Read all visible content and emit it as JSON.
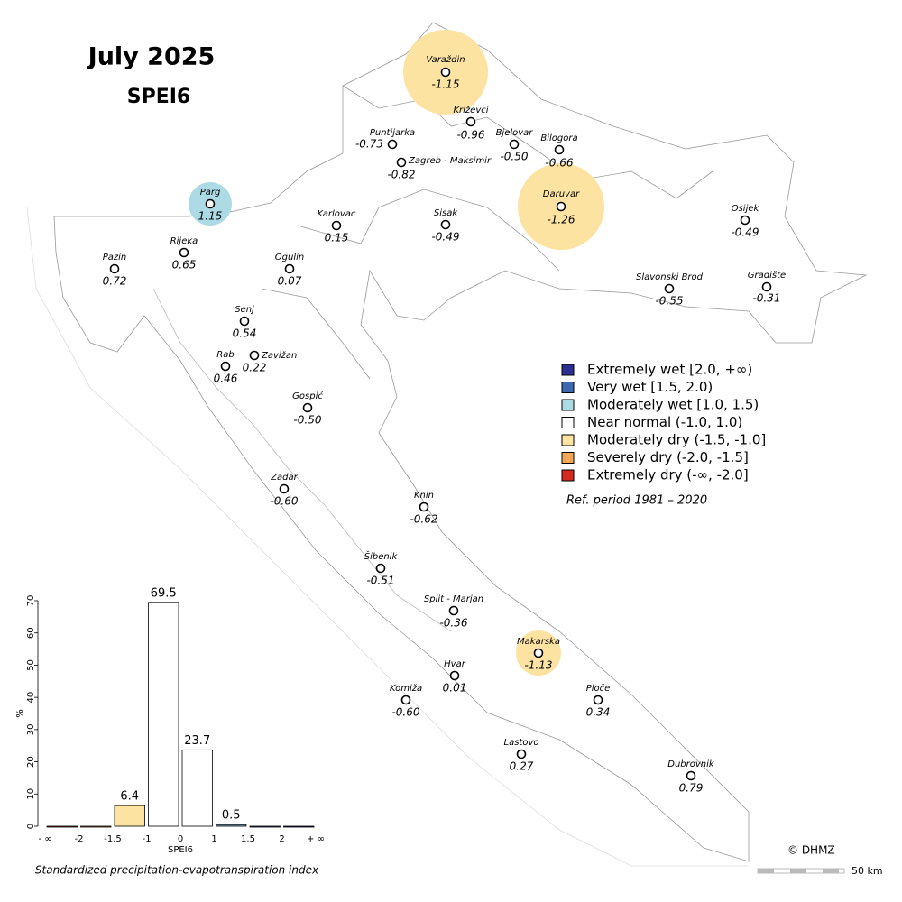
{
  "title": "July 2025",
  "subtitle": "SPEI6",
  "stations": [
    {
      "name": "Varaždin",
      "value": "-1.15",
      "zone_color": "#fde3a1"
    },
    {
      "name": "Križevci",
      "value": "-0.96"
    },
    {
      "name": "Puntijarka",
      "value": "-0.73"
    },
    {
      "name": "Zagreb - Maksimir",
      "value": "-0.82"
    },
    {
      "name": "Bjelovar",
      "value": "-0.50"
    },
    {
      "name": "Bilogora",
      "value": "-0.66"
    },
    {
      "name": "Parg",
      "value": "1.15",
      "zone_color": "#acdbe6"
    },
    {
      "name": "Karlovac",
      "value": "0.15"
    },
    {
      "name": "Sisak",
      "value": "-0.49"
    },
    {
      "name": "Daruvar",
      "value": "-1.26",
      "zone_color": "#fde3a1"
    },
    {
      "name": "Osijek",
      "value": "-0.49"
    },
    {
      "name": "Pazin",
      "value": "0.72"
    },
    {
      "name": "Rijeka",
      "value": "0.65"
    },
    {
      "name": "Ogulin",
      "value": "0.07"
    },
    {
      "name": "Slavonski Brod",
      "value": "-0.55"
    },
    {
      "name": "Gradište",
      "value": "-0.31"
    },
    {
      "name": "Senj",
      "value": "0.54"
    },
    {
      "name": "Rab",
      "value": "0.46"
    },
    {
      "name": "Zavižan",
      "value": "0.22"
    },
    {
      "name": "Gospić",
      "value": "-0.50"
    },
    {
      "name": "Zadar",
      "value": "-0.60"
    },
    {
      "name": "Knin",
      "value": "-0.62"
    },
    {
      "name": "Šibenik",
      "value": "-0.51"
    },
    {
      "name": "Split - Marjan",
      "value": "-0.36"
    },
    {
      "name": "Makarska",
      "value": "-1.13",
      "zone_color": "#fde3a1"
    },
    {
      "name": "Hvar",
      "value": "0.01"
    },
    {
      "name": "Komiža",
      "value": "-0.60"
    },
    {
      "name": "Ploče",
      "value": "0.34"
    },
    {
      "name": "Lastovo",
      "value": "0.27"
    },
    {
      "name": "Dubrovnik",
      "value": "0.79"
    }
  ],
  "legend": [
    {
      "label": "Extremely wet [2.0, +∞)",
      "color": "#2b2f8f"
    },
    {
      "label": "Very wet [1.5, 2.0)",
      "color": "#3c68b0"
    },
    {
      "label": "Moderately wet [1.0, 1.5)",
      "color": "#acdbe6"
    },
    {
      "label": "Near normal (-1.0, 1.0)",
      "color": "#ffffff"
    },
    {
      "label": "Moderately dry (-1.5, -1.0]",
      "color": "#fde3a1"
    },
    {
      "label": "Severely dry (-2.0, -1.5]",
      "color": "#f2a65a"
    },
    {
      "label": "Extremely dry (-∞, -2.0]",
      "color": "#d42a20"
    }
  ],
  "ref_period": "Ref. period 1981 – 2020",
  "copyright": "© DHMZ",
  "scale_label": "50 km",
  "chart_data": {
    "type": "histogram",
    "bins": [
      "- ∞",
      "-2",
      "-1.5",
      "-1",
      "0",
      "1",
      "1.5",
      "2",
      "+ ∞"
    ],
    "values": [
      0,
      0,
      6.4,
      69.5,
      23.7,
      0.5,
      0,
      0
    ],
    "colors": [
      "#d42a20",
      "#f2a65a",
      "#fde3a1",
      "#ffffff",
      "#ffffff",
      "#7f9fb8",
      "#3c68b0",
      "#2b2f8f"
    ],
    "ylim": [
      0,
      70
    ],
    "yticks": [
      0,
      10,
      20,
      30,
      40,
      50,
      60,
      70
    ],
    "xlabel": "SPEI6",
    "ylabel": "%",
    "caption": "Standardized precipitation-evapotranspiration index"
  }
}
